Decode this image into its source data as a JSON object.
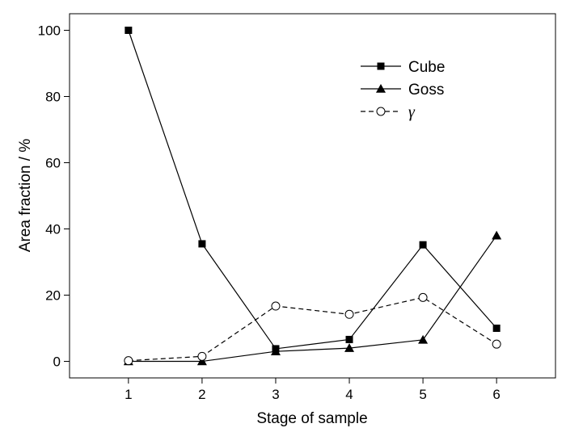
{
  "chart_data": {
    "type": "line",
    "title": "",
    "xlabel": "Stage of sample",
    "ylabel": "Area fraction / %",
    "x": [
      1,
      2,
      3,
      4,
      5,
      6
    ],
    "xlim": [
      0.2,
      6.8
    ],
    "ylim": [
      -5,
      105
    ],
    "xticks": [
      1,
      2,
      3,
      4,
      5,
      6
    ],
    "yticks": [
      0,
      20,
      40,
      60,
      80,
      100
    ],
    "grid": false,
    "legend_position": "top-right",
    "series": [
      {
        "name": "Cube",
        "marker": "filled-square",
        "line_style": "solid",
        "color": "#000000",
        "values": [
          100,
          35.5,
          3.8,
          6.6,
          35.2,
          10
        ]
      },
      {
        "name": "Goss",
        "marker": "filled-triangle",
        "line_style": "solid",
        "color": "#000000",
        "values": [
          0,
          0,
          3,
          4,
          6.5,
          38
        ]
      },
      {
        "name": "γ",
        "marker": "open-circle",
        "line_style": "dashed",
        "color": "#000000",
        "values": [
          0.2,
          1.5,
          16.7,
          14.2,
          19.3,
          5.2
        ]
      }
    ]
  }
}
